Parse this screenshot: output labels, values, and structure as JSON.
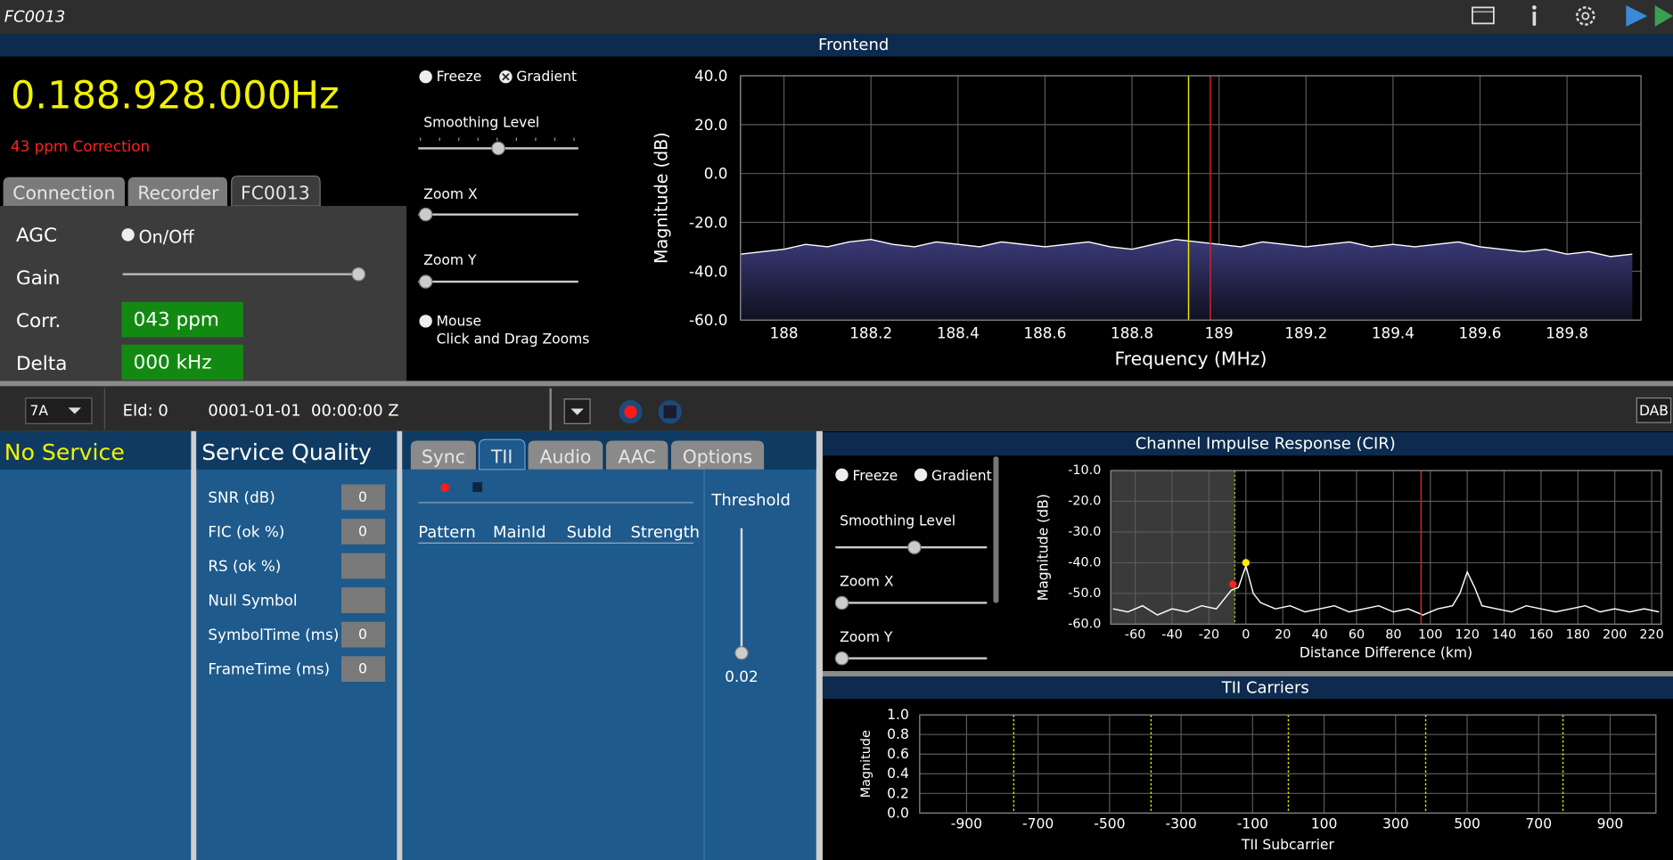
{
  "title_bar": {
    "title": "FC0013"
  },
  "frontend": {
    "header": "Frontend",
    "frequency": "0.188.928.000",
    "unit": "Hz",
    "correction": "43 ppm Correction",
    "tabs": [
      "Connection",
      "Recorder",
      "FC0013"
    ],
    "controls": {
      "agc": "AGC",
      "on_off": "On/Off",
      "gain": "Gain",
      "corr": "Corr.",
      "corr_value": "043 ppm",
      "delta": "Delta",
      "delta_value": "000 kHz"
    },
    "options": {
      "freeze": "Freeze",
      "gradient": "Gradient",
      "smoothing": "Smoothing Level",
      "zoom_x": "Zoom X",
      "zoom_y": "Zoom Y",
      "mouse": "Mouse",
      "mouse_hint": "Click and Drag Zooms"
    }
  },
  "toolbar": {
    "channel": "7A",
    "eid": "EId: 0",
    "timestamp": "0001-01-01  00:00:00 Z",
    "mode": "DAB"
  },
  "service": {
    "title": "No Service"
  },
  "quality": {
    "title": "Service Quality",
    "rows": [
      {
        "label": "SNR (dB)",
        "value": "0"
      },
      {
        "label": "FIC (ok %)",
        "value": "0"
      },
      {
        "label": "RS (ok %)"
      },
      {
        "label": "Null Symbol"
      },
      {
        "label": "SymbolTime (ms)",
        "value": "0"
      },
      {
        "label": "FrameTime (ms)",
        "value": "0"
      }
    ]
  },
  "tii_panel": {
    "tabs": [
      "Sync",
      "TII",
      "Audio",
      "AAC",
      "Options"
    ],
    "columns": [
      "Pattern",
      "MainId",
      "SubId",
      "Strength"
    ],
    "threshold": "Threshold",
    "threshold_value": "0.02"
  },
  "cir": {
    "header": "Channel Impulse Response (CIR)",
    "options": {
      "freeze": "Freeze",
      "gradient": "Gradient",
      "smoothing": "Smoothing Level",
      "zoom_x": "Zoom X",
      "zoom_y": "Zoom Y"
    }
  },
  "tii_carriers": {
    "header": "TII Carriers"
  },
  "chart_data": [
    {
      "type": "line",
      "xlabel": "Frequency (MHz)",
      "ylabel": "Magnitude (dB)",
      "xlim": [
        187.9,
        189.97
      ],
      "ylim": [
        -60,
        40
      ],
      "xticks": [
        188,
        188.2,
        188.4,
        188.6,
        188.8,
        189,
        189.2,
        189.4,
        189.6,
        189.8
      ],
      "yticks": [
        {
          "value": 40,
          "label": "40.0"
        },
        {
          "value": 20,
          "label": "20.0"
        },
        {
          "value": 0,
          "label": "0.0"
        },
        {
          "value": -20,
          "label": "-20.0"
        },
        {
          "value": -40,
          "label": "-40.0"
        },
        {
          "value": -60,
          "label": "-60.0"
        }
      ],
      "grid": true,
      "fill": true,
      "x": [
        187.9,
        187.95,
        188,
        188.05,
        188.1,
        188.15,
        188.2,
        188.25,
        188.3,
        188.35,
        188.4,
        188.45,
        188.5,
        188.55,
        188.6,
        188.65,
        188.7,
        188.75,
        188.8,
        188.85,
        188.9,
        188.95,
        189,
        189.05,
        189.1,
        189.15,
        189.2,
        189.25,
        189.3,
        189.35,
        189.4,
        189.45,
        189.5,
        189.55,
        189.6,
        189.65,
        189.7,
        189.75,
        189.8,
        189.85,
        189.9,
        189.95
      ],
      "series": [
        {
          "color": "#ffffff",
          "values": [
            -33,
            -32,
            -31,
            -29,
            -30,
            -28,
            -27,
            -29,
            -30,
            -28,
            -29,
            -30,
            -28,
            -29,
            -30,
            -29,
            -28,
            -30,
            -31,
            -29,
            -27,
            -28,
            -29,
            -30,
            -28,
            -29,
            -30,
            -29,
            -28,
            -30,
            -29,
            -30,
            -29,
            -28,
            -30,
            -31,
            -32,
            -31,
            -33,
            -32,
            -34,
            -33
          ]
        }
      ],
      "markers": [
        {
          "x": 188.93,
          "color": "#e8e800"
        },
        {
          "x": 188.98,
          "color": "#e02020"
        }
      ]
    },
    {
      "type": "line",
      "xlabel": "Distance Difference (km)",
      "ylabel": "Magnitude (dB)",
      "xlim": [
        -73.3,
        225.2
      ],
      "ylim": [
        -60,
        -10
      ],
      "xticks": [
        -60,
        -40,
        -20,
        0,
        20,
        40,
        60,
        80,
        100,
        120,
        140,
        160,
        180,
        200,
        220
      ],
      "yticks": [
        {
          "value": -10,
          "label": "-10.0"
        },
        {
          "value": -20,
          "label": "-20.0"
        },
        {
          "value": -30,
          "label": "-30.0"
        },
        {
          "value": -40,
          "label": "-40.0"
        },
        {
          "value": -50,
          "label": "-50.0"
        },
        {
          "value": -60,
          "label": "-60.0"
        }
      ],
      "grid": true,
      "highlight": [
        -73.3,
        -6
      ],
      "x": [
        -72,
        -64,
        -56,
        -48,
        -40,
        -32,
        -24,
        -16,
        -8,
        -4,
        0,
        4,
        8,
        16,
        24,
        32,
        40,
        48,
        56,
        64,
        72,
        80,
        88,
        96,
        104,
        112,
        116,
        120,
        124,
        128,
        136,
        144,
        152,
        160,
        168,
        176,
        184,
        192,
        200,
        208,
        216,
        224
      ],
      "series": [
        {
          "color": "#ffffff",
          "values": [
            -55,
            -56,
            -54,
            -57,
            -55,
            -56,
            -54,
            -55,
            -49,
            -48,
            -41,
            -50,
            -53,
            -55,
            -54,
            -56,
            -55,
            -54,
            -56,
            -55,
            -54,
            -56,
            -55,
            -57,
            -55,
            -54,
            -50,
            -43,
            -48,
            -54,
            -55,
            -56,
            -54,
            -55,
            -56,
            -55,
            -54,
            -56,
            -55,
            -56,
            -55,
            -56
          ]
        }
      ],
      "markers": [
        {
          "x": 95,
          "color": "#e02020"
        }
      ],
      "points": [
        {
          "x": -7,
          "y": -47,
          "color": "#ff2020"
        },
        {
          "x": 0,
          "y": -40,
          "color": "#ffee00"
        }
      ]
    },
    {
      "type": "line",
      "xlabel": "TII Subcarrier",
      "ylabel": "Magnitude",
      "xlim": [
        -1031,
        1028
      ],
      "ylim": [
        0,
        1
      ],
      "xticks": [
        -900,
        -700,
        -500,
        -300,
        -100,
        100,
        300,
        500,
        700,
        900
      ],
      "yticks": [
        {
          "value": 1,
          "label": "1.0"
        },
        {
          "value": 0.8,
          "label": "0.8"
        },
        {
          "value": 0.6,
          "label": "0.6"
        },
        {
          "value": 0.4,
          "label": "0.4"
        },
        {
          "value": 0.2,
          "label": "0.2"
        },
        {
          "value": 0,
          "label": "0.0"
        }
      ],
      "grid": true,
      "markers": [
        {
          "x": -768,
          "color": "#e8e800",
          "dashed": true
        },
        {
          "x": -384,
          "color": "#e8e800",
          "dashed": true
        },
        {
          "x": 0,
          "color": "#e8e800",
          "dashed": true
        },
        {
          "x": 384,
          "color": "#e8e800",
          "dashed": true
        },
        {
          "x": 768,
          "color": "#e8e800",
          "dashed": true
        }
      ]
    }
  ]
}
